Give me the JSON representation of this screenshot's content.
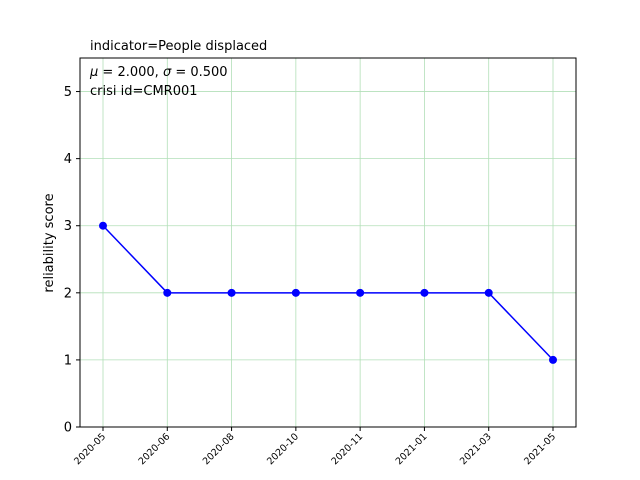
{
  "chart_data": {
    "type": "line",
    "title": "indicator=People displaced",
    "annotation": {
      "mean_symbol": "μ",
      "mean_value": "2.000",
      "sigma_symbol": "σ",
      "sigma_value": "0.500",
      "line2": "crisi id=CMR001"
    },
    "xlabel": "",
    "ylabel": "reliability score",
    "x": [
      "2020-05",
      "2020-06",
      "2020-08",
      "2020-10",
      "2020-11",
      "2021-01",
      "2021-03",
      "2021-05"
    ],
    "series": [
      {
        "values": [
          3,
          2,
          2,
          2,
          2,
          2,
          2,
          1
        ],
        "color": "#0000ff"
      }
    ],
    "ylim": [
      0,
      5.5
    ],
    "yticks": [
      0,
      1,
      2,
      3,
      4,
      5
    ],
    "grid": true,
    "grid_color": "#b2dfb8"
  }
}
